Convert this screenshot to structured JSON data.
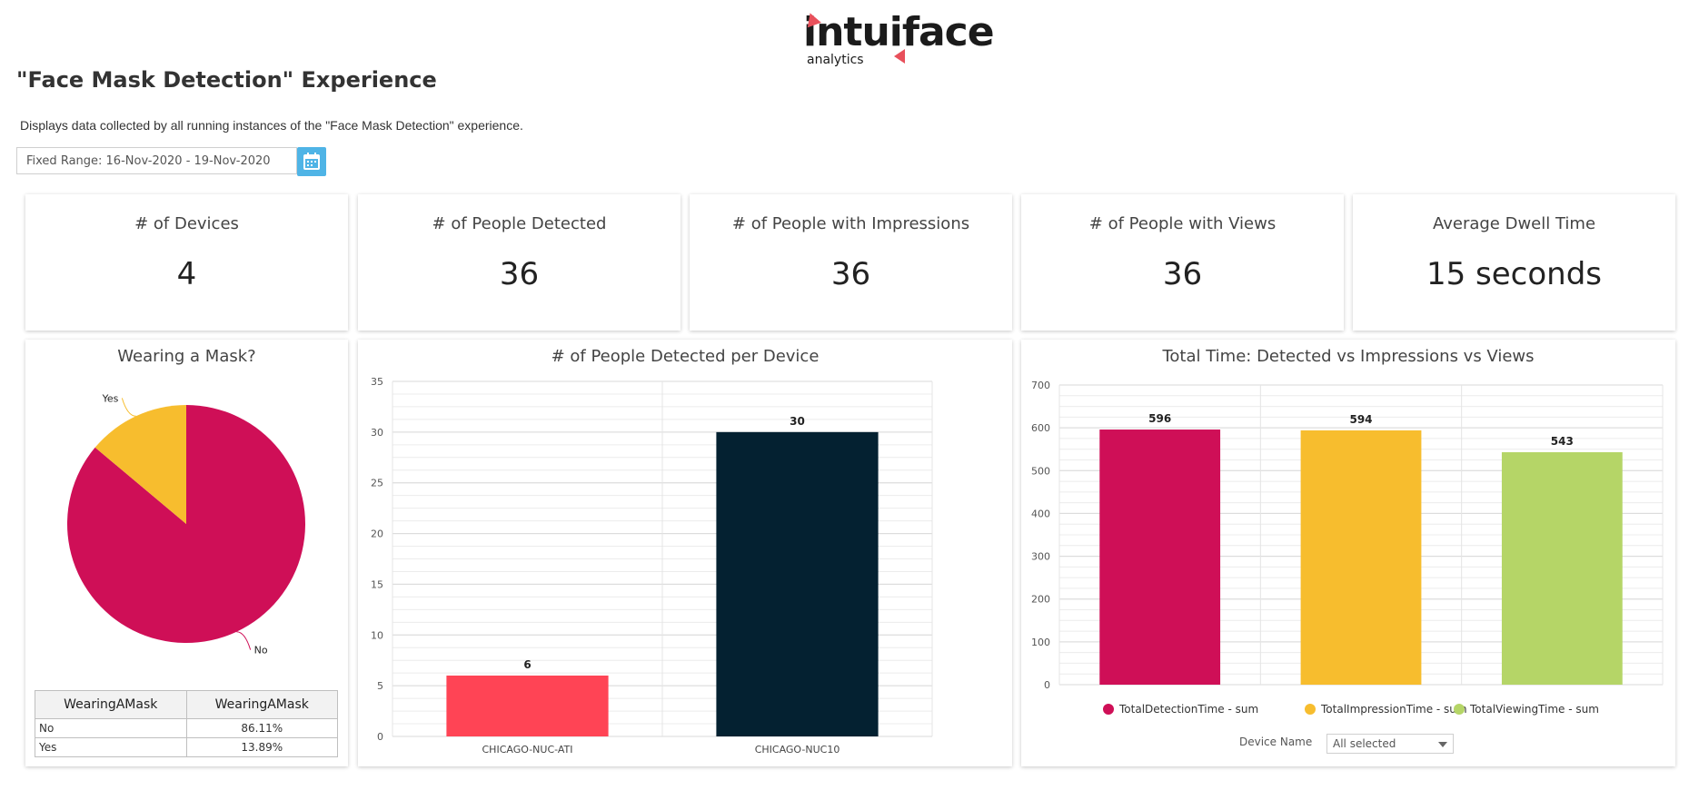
{
  "logo": {
    "wordmark": "intuiface",
    "sub": "analytics",
    "accent": "#e8505b"
  },
  "page": {
    "title": "\"Face Mask Detection\" Experience",
    "description": "Displays data collected by all running instances of the \"Face Mask Detection\" experience.",
    "date_range": "Fixed Range: 16-Nov-2020 - 19-Nov-2020",
    "calendar_icon": "calendar-icon"
  },
  "kpis": [
    {
      "title": "# of Devices",
      "value": "4"
    },
    {
      "title": "# of People Detected",
      "value": "36"
    },
    {
      "title": "# of People with Impressions",
      "value": "36"
    },
    {
      "title": "# of People with Views",
      "value": "36"
    },
    {
      "title": "Average Dwell Time",
      "value": "15 seconds"
    }
  ],
  "mask_panel": {
    "title": "Wearing a Mask?",
    "table": {
      "headers": [
        "WearingAMask",
        "WearingAMask"
      ],
      "rows": [
        [
          "No",
          "86.11%"
        ],
        [
          "Yes",
          "13.89%"
        ]
      ]
    }
  },
  "device_panel": {
    "title": "# of People Detected per Device",
    "filter_label": "",
    "filter_value": ""
  },
  "time_panel": {
    "title": "Total Time: Detected vs Impressions vs Views",
    "filter_label": "Device Name",
    "filter_value": "All selected"
  },
  "chart_data": [
    {
      "type": "pie",
      "title": "Wearing a Mask?",
      "categories": [
        "No",
        "Yes"
      ],
      "values": [
        86.11,
        13.89
      ],
      "colors": [
        "#cf0f57",
        "#f7bd2e"
      ]
    },
    {
      "type": "bar",
      "title": "# of People Detected per Device",
      "categories": [
        "CHICAGO-NUC-ATI",
        "CHICAGO-NUC10"
      ],
      "values": [
        6,
        30
      ],
      "colors": [
        "#ff4455",
        "#042131"
      ],
      "ylim": [
        0,
        35
      ],
      "yticks": [
        0,
        5,
        10,
        15,
        20,
        25,
        30,
        35
      ],
      "grid": true
    },
    {
      "type": "bar",
      "title": "Total Time: Detected vs Impressions vs Views",
      "categories": [
        "TotalDetectionTime - sum",
        "TotalImpressionTime - sum",
        "TotalViewingTime - sum"
      ],
      "values": [
        596,
        594,
        543
      ],
      "colors": [
        "#cf0f57",
        "#f7bd2e",
        "#b5d567"
      ],
      "ylim": [
        0,
        700
      ],
      "yticks": [
        0,
        100,
        200,
        300,
        400,
        500,
        600,
        700
      ],
      "grid": true,
      "legend": "bottom"
    }
  ]
}
